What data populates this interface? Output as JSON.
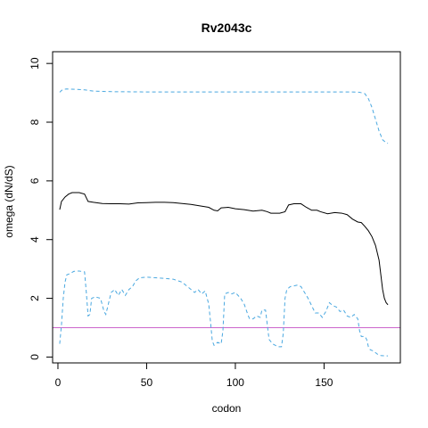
{
  "chart_data": {
    "type": "line",
    "title": "Rv2043c",
    "xlabel": "codon",
    "ylabel": "omega (dN/dS)",
    "xlim": [
      -3,
      193
    ],
    "ylim": [
      -0.2,
      10.4
    ],
    "x_ticks": [
      0,
      50,
      100,
      150
    ],
    "y_ticks": [
      0,
      2,
      4,
      6,
      8,
      10
    ],
    "x_tick_labels": [
      "0",
      "50",
      "100",
      "150"
    ],
    "y_tick_labels": [
      "0",
      "2",
      "4",
      "6",
      "8",
      "10"
    ],
    "grid": false,
    "legend": "none",
    "reference_line": {
      "y": 1,
      "color": "#cc66cc"
    },
    "series": [
      {
        "style": "dashed",
        "color": "#4aa8e0",
        "points": [
          [
            1,
            9.02
          ],
          [
            2,
            9.08
          ],
          [
            3,
            9.12
          ],
          [
            5,
            9.13
          ],
          [
            10,
            9.12
          ],
          [
            15,
            9.1
          ],
          [
            20,
            9.06
          ],
          [
            30,
            9.04
          ],
          [
            50,
            9.03
          ],
          [
            100,
            9.03
          ],
          [
            150,
            9.03
          ],
          [
            165,
            9.03
          ],
          [
            170,
            9.02
          ],
          [
            173,
            8.97
          ],
          [
            175,
            8.8
          ],
          [
            177,
            8.5
          ],
          [
            179,
            8.1
          ],
          [
            181,
            7.7
          ],
          [
            183,
            7.4
          ],
          [
            185,
            7.3
          ],
          [
            186,
            7.28
          ]
        ]
      },
      {
        "style": "solid",
        "color": "#000000",
        "points": [
          [
            1,
            5.02
          ],
          [
            2,
            5.3
          ],
          [
            4,
            5.45
          ],
          [
            6,
            5.55
          ],
          [
            8,
            5.6
          ],
          [
            12,
            5.6
          ],
          [
            15,
            5.55
          ],
          [
            17,
            5.3
          ],
          [
            20,
            5.27
          ],
          [
            25,
            5.23
          ],
          [
            30,
            5.22
          ],
          [
            35,
            5.22
          ],
          [
            40,
            5.21
          ],
          [
            45,
            5.25
          ],
          [
            50,
            5.26
          ],
          [
            55,
            5.27
          ],
          [
            60,
            5.27
          ],
          [
            65,
            5.26
          ],
          [
            70,
            5.23
          ],
          [
            75,
            5.2
          ],
          [
            80,
            5.15
          ],
          [
            85,
            5.1
          ],
          [
            88,
            5.0
          ],
          [
            90,
            4.98
          ],
          [
            92,
            5.08
          ],
          [
            96,
            5.1
          ],
          [
            100,
            5.05
          ],
          [
            105,
            5.02
          ],
          [
            110,
            4.97
          ],
          [
            115,
            5.0
          ],
          [
            118,
            4.95
          ],
          [
            120,
            4.9
          ],
          [
            125,
            4.9
          ],
          [
            128,
            4.95
          ],
          [
            130,
            5.18
          ],
          [
            133,
            5.22
          ],
          [
            137,
            5.22
          ],
          [
            140,
            5.1
          ],
          [
            143,
            5.0
          ],
          [
            146,
            5.0
          ],
          [
            148,
            4.95
          ],
          [
            152,
            4.88
          ],
          [
            156,
            4.92
          ],
          [
            160,
            4.9
          ],
          [
            163,
            4.85
          ],
          [
            166,
            4.7
          ],
          [
            169,
            4.6
          ],
          [
            171,
            4.58
          ],
          [
            173,
            4.45
          ],
          [
            175,
            4.3
          ],
          [
            177,
            4.1
          ],
          [
            179,
            3.8
          ],
          [
            181,
            3.3
          ],
          [
            182,
            2.8
          ],
          [
            183,
            2.3
          ],
          [
            184,
            2.0
          ],
          [
            185,
            1.85
          ],
          [
            186,
            1.78
          ]
        ]
      },
      {
        "style": "dashed",
        "color": "#4aa8e0",
        "points": [
          [
            1,
            0.45
          ],
          [
            2,
            1.1
          ],
          [
            3,
            2.0
          ],
          [
            4,
            2.55
          ],
          [
            5,
            2.8
          ],
          [
            7,
            2.85
          ],
          [
            9,
            2.92
          ],
          [
            12,
            2.93
          ],
          [
            15,
            2.9
          ],
          [
            16,
            2.2
          ],
          [
            17,
            1.4
          ],
          [
            18,
            1.45
          ],
          [
            19,
            2.0
          ],
          [
            21,
            2.05
          ],
          [
            24,
            2.0
          ],
          [
            26,
            1.55
          ],
          [
            27,
            1.45
          ],
          [
            28,
            1.7
          ],
          [
            30,
            2.2
          ],
          [
            32,
            2.3
          ],
          [
            34,
            2.1
          ],
          [
            36,
            2.3
          ],
          [
            38,
            2.1
          ],
          [
            40,
            2.3
          ],
          [
            42,
            2.4
          ],
          [
            44,
            2.6
          ],
          [
            46,
            2.7
          ],
          [
            50,
            2.72
          ],
          [
            55,
            2.7
          ],
          [
            60,
            2.68
          ],
          [
            65,
            2.65
          ],
          [
            70,
            2.55
          ],
          [
            72,
            2.45
          ],
          [
            74,
            2.35
          ],
          [
            77,
            2.2
          ],
          [
            79,
            2.3
          ],
          [
            81,
            2.15
          ],
          [
            83,
            2.25
          ],
          [
            85,
            1.8
          ],
          [
            86,
            1.2
          ],
          [
            87,
            0.55
          ],
          [
            88,
            0.4
          ],
          [
            90,
            0.5
          ],
          [
            92,
            0.45
          ],
          [
            93,
            0.9
          ],
          [
            94,
            2.15
          ],
          [
            96,
            2.2
          ],
          [
            98,
            2.15
          ],
          [
            100,
            2.2
          ],
          [
            103,
            2.0
          ],
          [
            105,
            1.8
          ],
          [
            107,
            1.45
          ],
          [
            108,
            1.3
          ],
          [
            110,
            1.3
          ],
          [
            112,
            1.4
          ],
          [
            114,
            1.35
          ],
          [
            115,
            1.6
          ],
          [
            117,
            1.6
          ],
          [
            118,
            1.1
          ],
          [
            119,
            0.6
          ],
          [
            121,
            0.45
          ],
          [
            124,
            0.35
          ],
          [
            126,
            0.35
          ],
          [
            127,
            0.8
          ],
          [
            128,
            2.0
          ],
          [
            129,
            2.3
          ],
          [
            131,
            2.4
          ],
          [
            135,
            2.45
          ],
          [
            137,
            2.4
          ],
          [
            139,
            2.2
          ],
          [
            141,
            2.0
          ],
          [
            143,
            1.75
          ],
          [
            145,
            1.5
          ],
          [
            147,
            1.5
          ],
          [
            149,
            1.35
          ],
          [
            151,
            1.55
          ],
          [
            153,
            1.85
          ],
          [
            155,
            1.75
          ],
          [
            157,
            1.7
          ],
          [
            159,
            1.55
          ],
          [
            161,
            1.6
          ],
          [
            163,
            1.4
          ],
          [
            165,
            1.35
          ],
          [
            167,
            1.45
          ],
          [
            169,
            1.3
          ],
          [
            170,
            0.9
          ],
          [
            171,
            0.7
          ],
          [
            173,
            0.7
          ],
          [
            174,
            0.6
          ],
          [
            175,
            0.35
          ],
          [
            176,
            0.25
          ],
          [
            178,
            0.2
          ],
          [
            180,
            0.1
          ],
          [
            182,
            0.05
          ],
          [
            184,
            0.04
          ],
          [
            186,
            0.04
          ]
        ]
      }
    ]
  }
}
